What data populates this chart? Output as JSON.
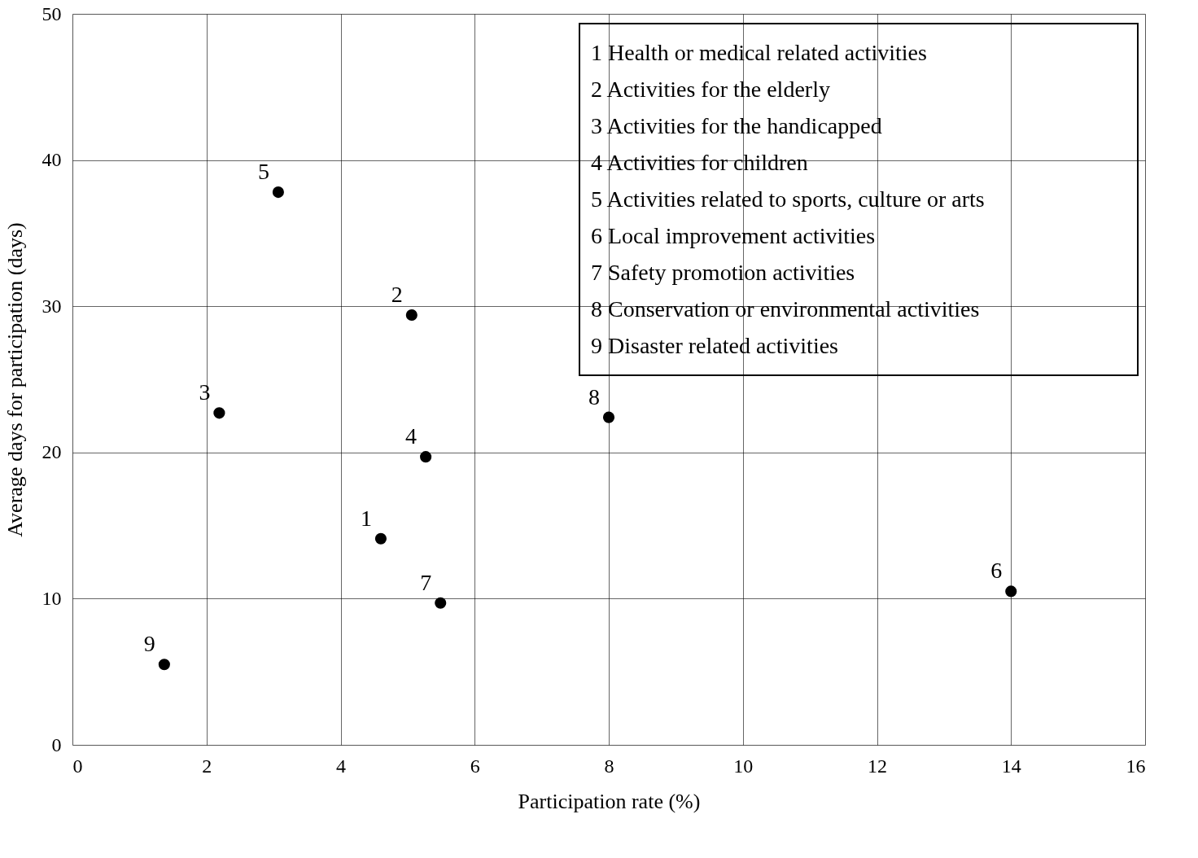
{
  "chart_data": {
    "type": "scatter",
    "xlabel": "Participation rate (%)",
    "ylabel": "Average  days for participation (days)",
    "x": [
      4.6,
      5.06,
      2.19,
      5.27,
      3.07,
      14.0,
      5.49,
      8.0,
      1.37
    ],
    "values": [
      14.1,
      29.4,
      22.7,
      19.7,
      37.8,
      10.5,
      9.7,
      22.4,
      5.5
    ],
    "color": "#000000",
    "marker": "circle",
    "grid": true,
    "xlim": [
      0,
      16
    ],
    "xticks": [
      0,
      2,
      4,
      6,
      8,
      10,
      12,
      14,
      16
    ],
    "ylim": [
      0,
      50
    ],
    "yticks": [
      0,
      10,
      20,
      30,
      40,
      50
    ],
    "annotations": [
      {
        "text": "1",
        "x": 4.6,
        "y": 14.1
      },
      {
        "text": "2",
        "x": 5.06,
        "y": 29.4
      },
      {
        "text": "3",
        "x": 2.19,
        "y": 22.7
      },
      {
        "text": "4",
        "x": 5.27,
        "y": 19.7
      },
      {
        "text": "5",
        "x": 3.07,
        "y": 37.8
      },
      {
        "text": "6",
        "x": 14.0,
        "y": 10.5
      },
      {
        "text": "7",
        "x": 5.49,
        "y": 9.7
      },
      {
        "text": "8",
        "x": 8.0,
        "y": 22.4
      },
      {
        "text": "9",
        "x": 1.37,
        "y": 5.5
      },
      "1  Health or medical related activities",
      "2  Activities for the elderly",
      "3  Activities for the handicapped",
      "4  Activities for children",
      "5  Activities related to sports, culture or arts",
      "6  Local improvement activities",
      "7  Safety promotion activities",
      "8  Conservation or environmental activities",
      "9  Disaster related activities"
    ]
  }
}
